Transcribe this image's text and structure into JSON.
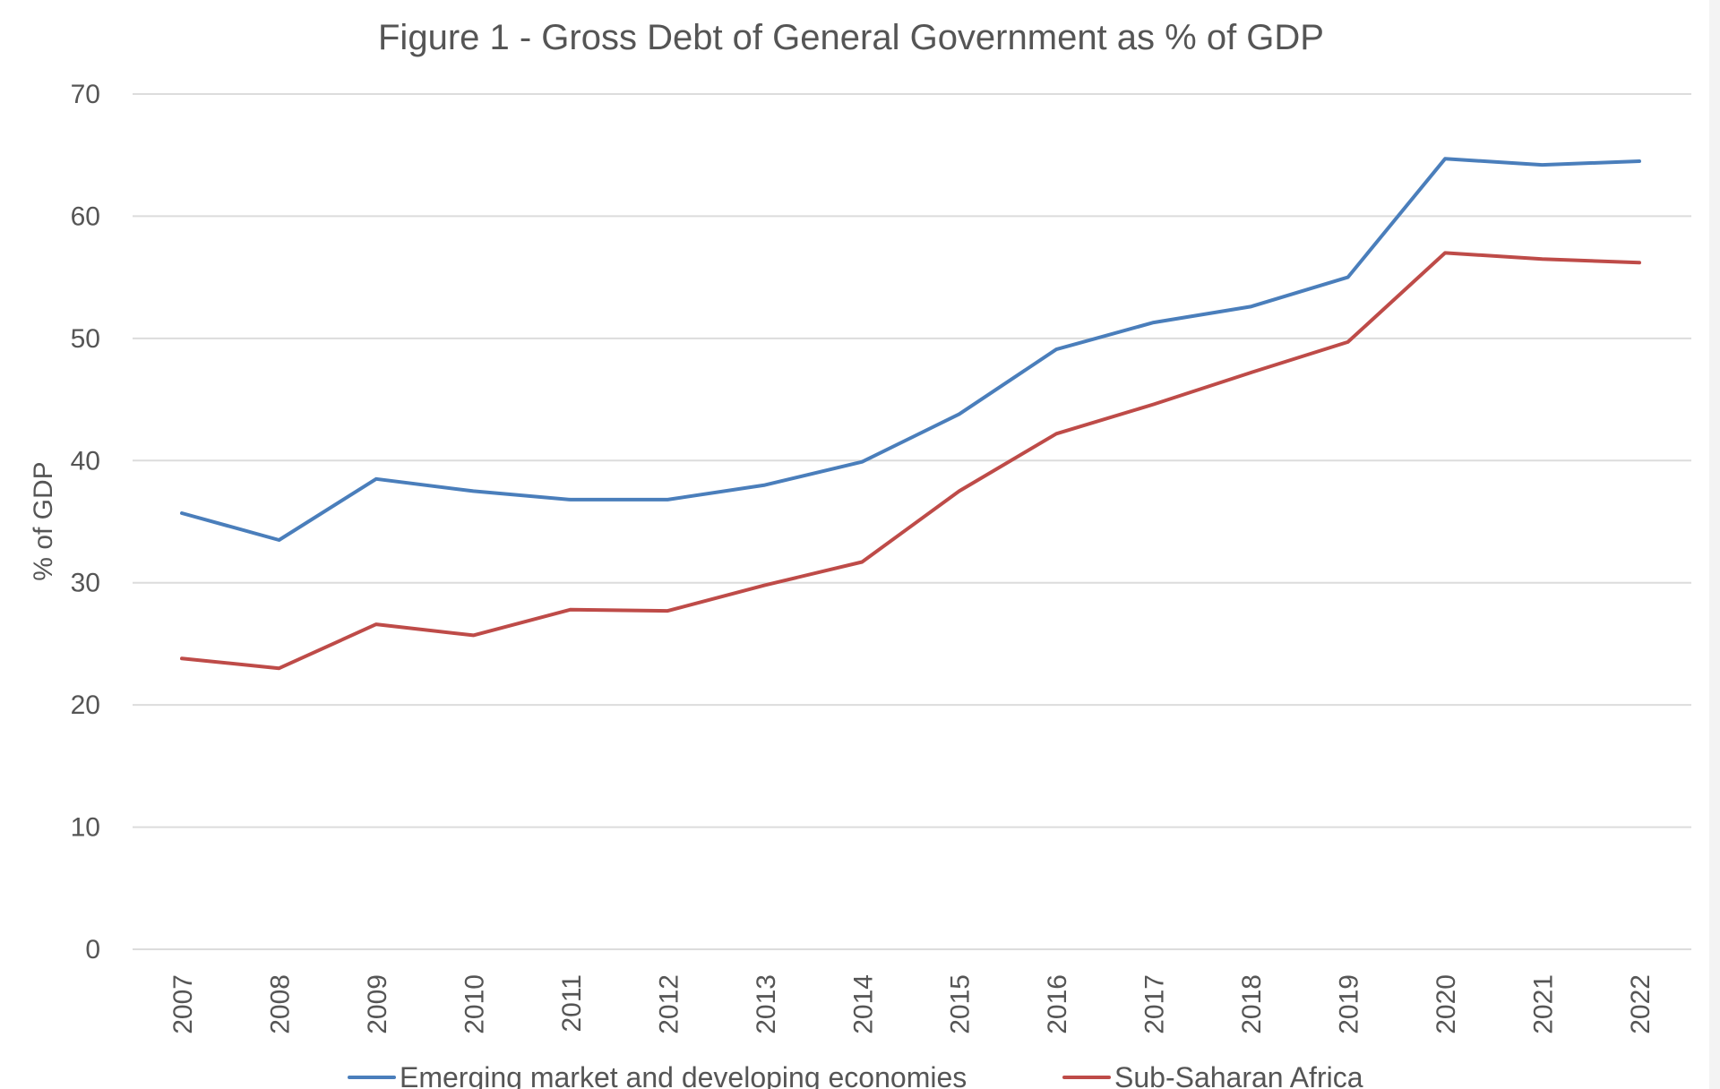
{
  "chart_data": {
    "type": "line",
    "title": "Figure 1 - Gross Debt of General Government as % of GDP",
    "xlabel": "",
    "ylabel": "% of GDP",
    "categories": [
      "2007",
      "2008",
      "2009",
      "2010",
      "2011",
      "2012",
      "2013",
      "2014",
      "2015",
      "2016",
      "2017",
      "2018",
      "2019",
      "2020",
      "2021",
      "2022"
    ],
    "ylim": [
      0,
      70
    ],
    "yticks": [
      0,
      10,
      20,
      30,
      40,
      50,
      60,
      70
    ],
    "grid": true,
    "legend_position": "bottom",
    "series": [
      {
        "name": "Emerging market and developing economies",
        "color": "#4a7ebb",
        "values": [
          35.7,
          33.5,
          38.5,
          37.5,
          36.8,
          36.8,
          38.0,
          39.9,
          43.8,
          49.1,
          51.3,
          52.6,
          55.0,
          64.7,
          64.2,
          64.5
        ]
      },
      {
        "name": "Sub-Saharan Africa",
        "color": "#be4b48",
        "values": [
          23.8,
          23.0,
          26.6,
          25.7,
          27.8,
          27.7,
          29.8,
          31.7,
          37.5,
          42.2,
          44.6,
          47.2,
          49.7,
          57.0,
          56.5,
          56.2
        ]
      }
    ]
  }
}
